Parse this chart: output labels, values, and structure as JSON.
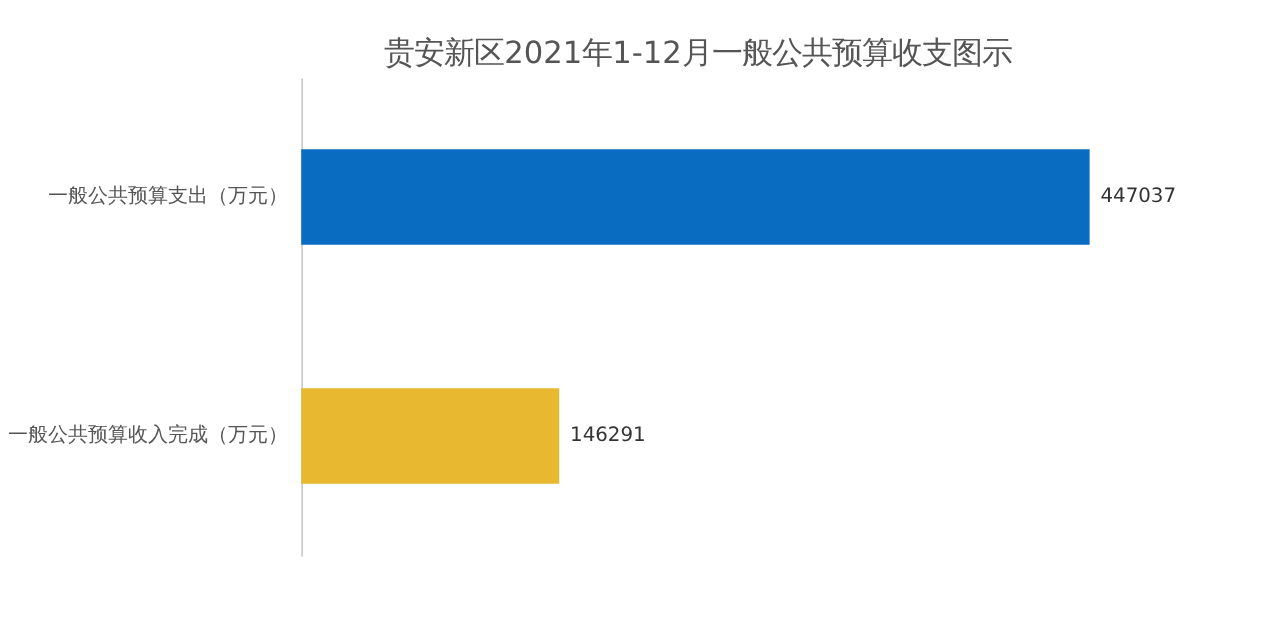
{
  "chart_data": {
    "type": "bar",
    "orientation": "horizontal",
    "title": "贵安新区2021年1-12月一般公共预算收支图示",
    "categories": [
      "一般公共预算支出（万元）",
      "一般公共预算收入完成（万元）"
    ],
    "values": [
      447037,
      146291
    ],
    "colors": [
      "#0a6cc0",
      "#e8b830"
    ],
    "data_labels": true
  }
}
